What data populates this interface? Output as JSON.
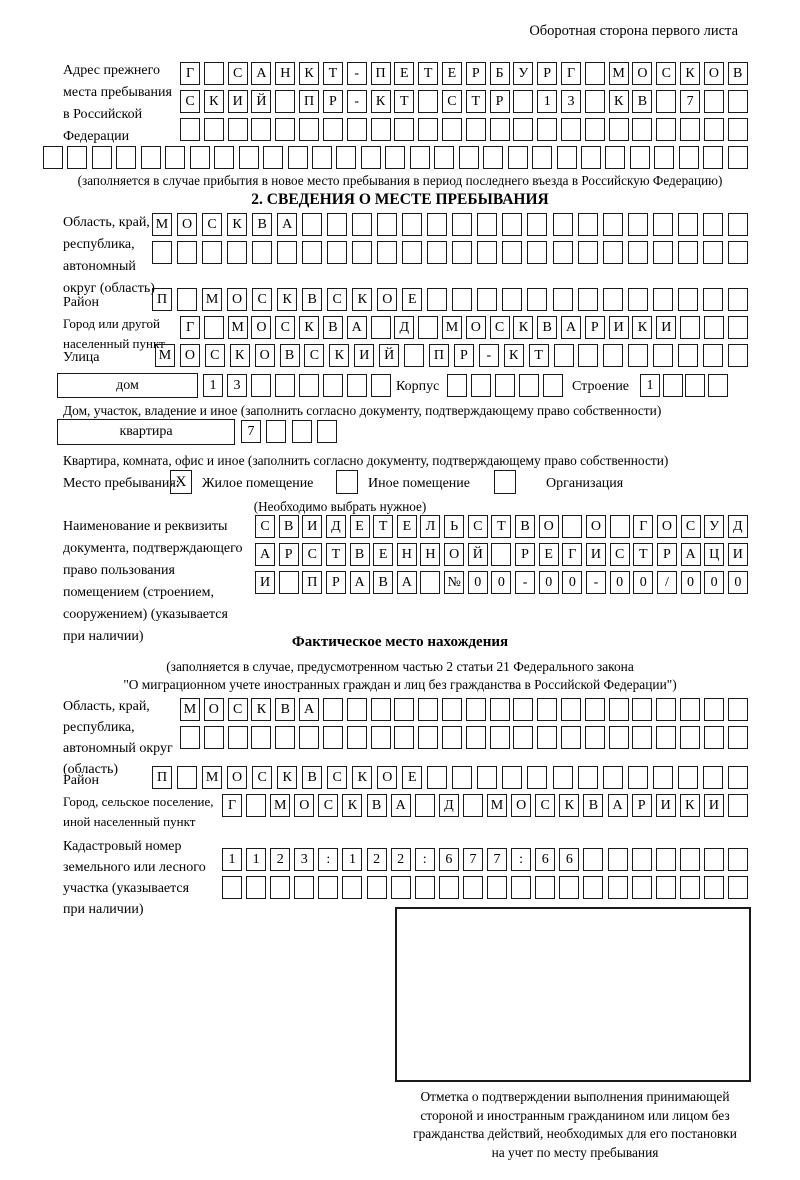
{
  "page_note": "Оборотная сторона первого листа",
  "top_section": {
    "label_lines": [
      "Адрес прежнего",
      "места пребывания",
      "в Российской",
      "Федерации"
    ],
    "address_value": "Г САНКТ-ПЕТЕРБУРГ МОСКОВСКИЙ ПР-КТ СТР 13 КВ 7",
    "caption": "(заполняется в случае прибытия в новое место пребывания в период последнего въезда в Российскую Федерацию)"
  },
  "section2": {
    "heading": "2. СВЕДЕНИЯ О МЕСТЕ ПРЕБЫВАНИЯ",
    "labels": {
      "oblast_lines": [
        "Область, край,",
        "республика,",
        "автономный",
        "округ (область)"
      ],
      "raion": "Район",
      "gorod_lines": [
        "Город или другой",
        "населенный пункт"
      ],
      "ulitsa": "Улица",
      "dom_box": "дом",
      "korpus": "Корпус",
      "stroenie": "Строение",
      "kvartira_box": "квартира"
    },
    "captions": {
      "dom": "Дом, участок, владение и иное (заполнить согласно документу, подтверждающему право собственности)",
      "kvartira": "Квартира, комната, офис и иное (заполнить согласно документу, подтверждающему право собственности)",
      "mesto_hint": "(Необходимо выбрать нужное)"
    },
    "mesto": {
      "label": "Место пребывания:",
      "options": [
        {
          "label": "Жилое помещение",
          "mark": "X"
        },
        {
          "label": "Иное помещение",
          "mark": ""
        },
        {
          "label": "Организация",
          "mark": ""
        }
      ]
    },
    "doc_label_lines": [
      "Наименование и реквизиты",
      "документа, подтверждающего",
      "право пользования",
      "помещением (строением,",
      "сооружением) (указывается",
      "при наличии)"
    ],
    "doc_value": "СВИДЕТЕЛЬСТВО О ГОСУДАРСТВЕННОЙ РЕГИСТРАЦИИ ПРАВА №00-00-00/000"
  },
  "fact_section": {
    "heading": "Фактическое место нахождения",
    "caption_line1": "(заполняется в случае, предусмотренном частью 2 статьи 21 Федерального закона",
    "caption_line2": "\"О миграционном учете иностранных граждан и лиц без гражданства в Российской Федерации\")",
    "labels": {
      "oblast_lines": [
        "Область, край,",
        "республика,",
        "автономный округ",
        "(область)"
      ],
      "raion": "Район",
      "gorod_lines": [
        "Город, сельское поселение,",
        "иной населенный пункт"
      ],
      "kadastr_lines": [
        "Кадастровый номер",
        "земельного или лесного",
        "участка (указывается",
        "при наличии)"
      ]
    },
    "kadastr_value": "1123:122:677:66",
    "stamp_caption_lines": [
      "Отметка о подтверждении выполнения принимающей",
      "стороной и иностранным гражданином или лицом без",
      "гражданства действий, необходимых для его постановки",
      "на учет по месту пребывания"
    ]
  },
  "grids": {
    "addr1": {
      "len": 24,
      "text": "Г САНКТ-ПЕТЕРБУРГ МОСКОВ"
    },
    "addr2": {
      "len": 24,
      "text": "СКИЙ ПР-КТ СТР 13 КВ 7"
    },
    "addr3": {
      "len": 24,
      "text": ""
    },
    "addr4": {
      "len": 29,
      "text": ""
    },
    "s2_oblast1": {
      "len": 24,
      "text": "МОСКВА"
    },
    "s2_oblast2": {
      "len": 24,
      "text": ""
    },
    "s2_raion": {
      "len": 24,
      "text": "П МОСКВСКОЕ"
    },
    "s2_gorod": {
      "len": 24,
      "text": "Г МОСКВА Д МОСКВАРИКИ"
    },
    "s2_ulitsa": {
      "len": 24,
      "text": "МОСКОВСКИЙ ПР-КТ"
    },
    "dom": {
      "len": 8,
      "text": "13"
    },
    "korpus": {
      "len": 5,
      "text": ""
    },
    "stroenie": {
      "len": 4,
      "text": "1"
    },
    "kvartira": {
      "len": 4,
      "text": "7"
    },
    "doc1": {
      "len": 21,
      "text": "СВИДЕТЕЛЬСТВО О ГОСУД"
    },
    "doc2": {
      "len": 21,
      "text": "АРСТВЕННОЙ РЕГИСТРАЦИ"
    },
    "doc3": {
      "len": 21,
      "text": "И ПРАВА №00-00-00/000"
    },
    "f_oblast1": {
      "len": 24,
      "text": "МОСКВА"
    },
    "f_oblast2": {
      "len": 24,
      "text": ""
    },
    "f_raion": {
      "len": 24,
      "text": "П МОСКВСКОЕ"
    },
    "f_gorod": {
      "len": 22,
      "text": "Г МОСКВА Д МОСКВАРИКИ"
    },
    "kad1": {
      "len": 22,
      "text": "1123:122:677:66"
    },
    "kad2": {
      "len": 22,
      "text": ""
    }
  }
}
